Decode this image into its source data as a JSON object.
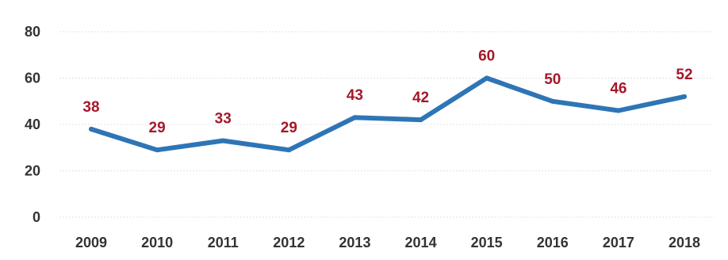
{
  "chart_data": {
    "type": "line",
    "x": [
      "2009",
      "2010",
      "2011",
      "2012",
      "2013",
      "2014",
      "2015",
      "2016",
      "2017",
      "2018"
    ],
    "series": [
      {
        "values": [
          38,
          29,
          33,
          29,
          43,
          42,
          60,
          50,
          46,
          52
        ]
      }
    ],
    "data_labels": [
      "38",
      "29",
      "33",
      "29",
      "43",
      "42",
      "60",
      "50",
      "46",
      "52"
    ],
    "y_ticks": [
      "0",
      "20",
      "40",
      "60",
      "80"
    ],
    "y_tick_values": [
      0,
      20,
      40,
      60,
      80
    ],
    "ylim": [
      0,
      80
    ],
    "grid": true,
    "legend": "none",
    "colors": {
      "line": "#2e75b6",
      "data_label": "#a5182b",
      "tick_label": "#333333",
      "grid": "#e3e3e3"
    }
  }
}
